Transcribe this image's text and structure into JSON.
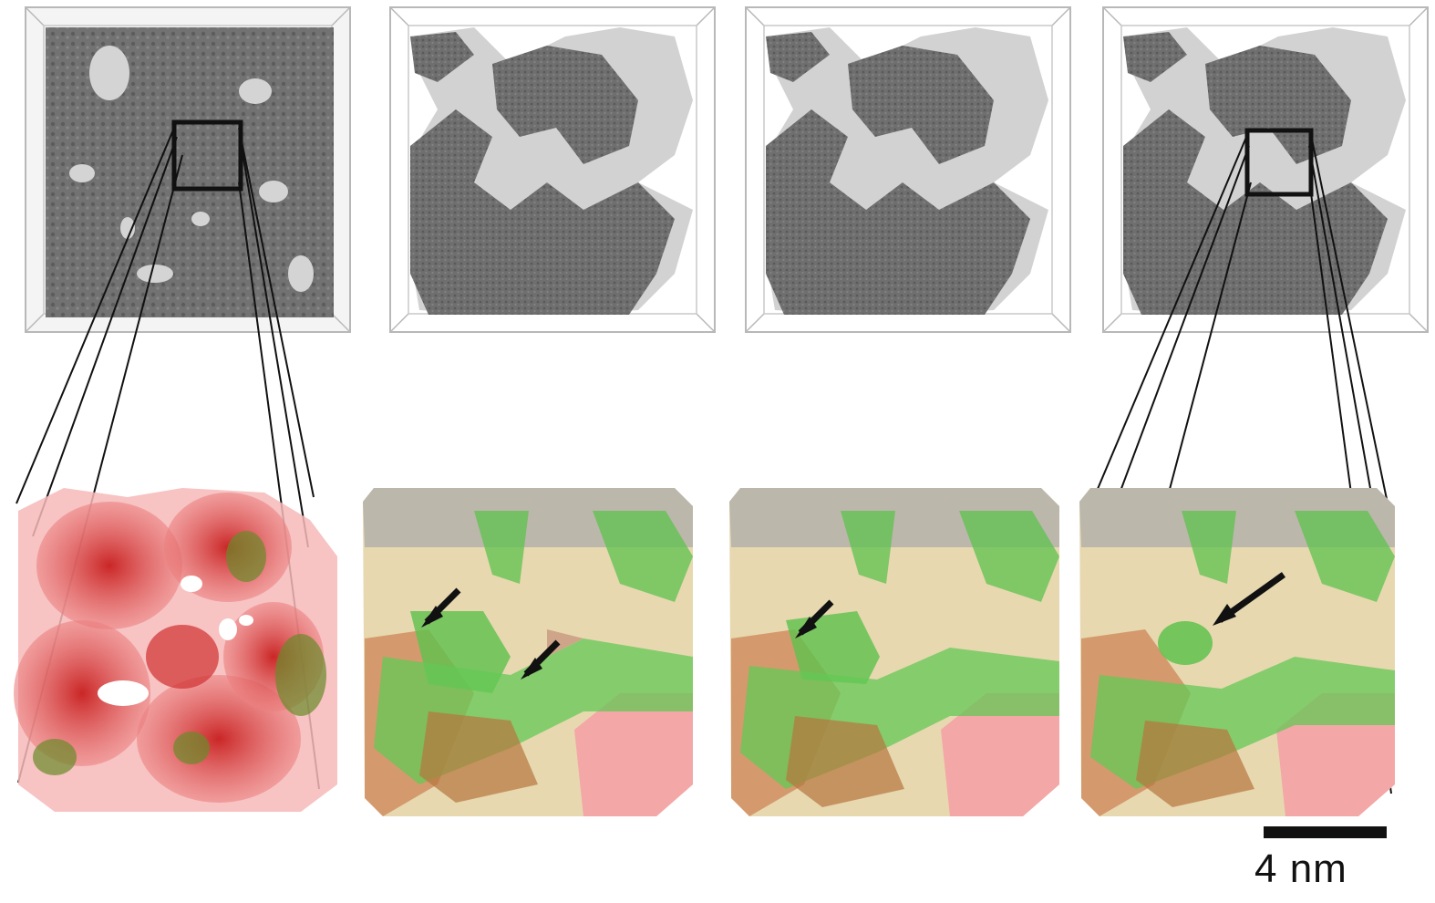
{
  "figure": {
    "panels_top": [
      "panel-1",
      "panel-2",
      "panel-3",
      "panel-4"
    ],
    "panels_bottom": [
      "zoom-1",
      "zoom-2",
      "zoom-3",
      "zoom-4"
    ]
  },
  "scale_bar": {
    "label": "4 nm"
  },
  "colors": {
    "structure_gray": "#6e6e6e",
    "pore_light": "#d6d6d6",
    "red_phase": "#e0423c",
    "green_phase": "#59c94e",
    "tan_phase": "#d8c596",
    "box_outline": "#b8b8b8"
  }
}
